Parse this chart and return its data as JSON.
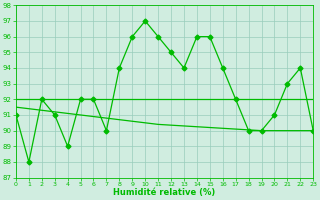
{
  "x": [
    0,
    1,
    2,
    3,
    4,
    5,
    6,
    7,
    8,
    9,
    10,
    11,
    12,
    13,
    14,
    15,
    16,
    17,
    18,
    19,
    20,
    21,
    22,
    23
  ],
  "y_main": [
    91,
    88,
    92,
    91,
    89,
    92,
    92,
    90,
    94,
    96,
    97,
    96,
    95,
    94,
    96,
    96,
    94,
    92,
    90,
    90,
    91,
    93,
    94,
    90
  ],
  "y_line1": [
    92,
    92,
    92,
    92,
    92,
    92,
    92,
    92,
    92,
    92,
    92,
    92,
    92,
    92,
    92,
    92,
    92,
    92,
    92,
    92,
    92,
    92,
    92,
    92
  ],
  "y_line2": [
    91.5,
    91.4,
    91.3,
    91.2,
    91.1,
    91.0,
    90.9,
    90.8,
    90.7,
    90.6,
    90.5,
    90.4,
    90.35,
    90.3,
    90.25,
    90.2,
    90.15,
    90.1,
    90.05,
    90.0,
    90.0,
    90.0,
    90.0,
    90.0
  ],
  "ylim": [
    87,
    98
  ],
  "xlim": [
    0,
    23
  ],
  "yticks": [
    87,
    88,
    89,
    90,
    91,
    92,
    93,
    94,
    95,
    96,
    97,
    98
  ],
  "xticks": [
    0,
    1,
    2,
    3,
    4,
    5,
    6,
    7,
    8,
    9,
    10,
    11,
    12,
    13,
    14,
    15,
    16,
    17,
    18,
    19,
    20,
    21,
    22,
    23
  ],
  "xlabel": "Humidité relative (%)",
  "line_color": "#00bb00",
  "bg_color": "#d0ede0",
  "grid_color": "#99ccbb",
  "marker": "D",
  "marker_size": 2.5,
  "linewidth": 0.9,
  "trend_linewidth": 0.9
}
